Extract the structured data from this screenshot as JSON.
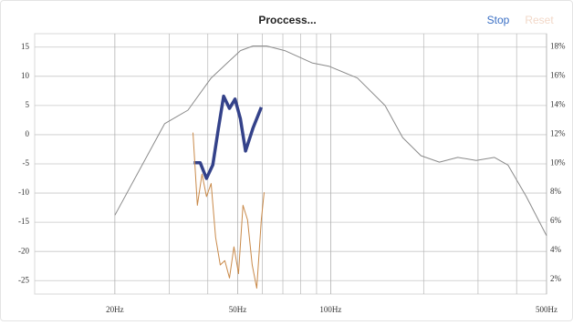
{
  "header": {
    "title": "Proccess...",
    "stop": "Stop",
    "reset": "Reset"
  },
  "chart_data": {
    "type": "line",
    "xscale": "log",
    "grid": true,
    "xlim": [
      11,
      500
    ],
    "xticks": [
      {
        "value": 20,
        "label": "20Hz"
      },
      {
        "value": 50,
        "label": "50Hz"
      },
      {
        "value": 100,
        "label": "100Hz"
      },
      {
        "value": 500,
        "label": "500Hz"
      }
    ],
    "xminor": [
      30,
      40,
      60,
      70,
      80,
      90,
      200,
      300,
      400
    ],
    "ylim": [
      -27.3,
      17.3
    ],
    "yticks": [
      15,
      10,
      5,
      0,
      -5,
      -10,
      -15,
      -20,
      -25
    ],
    "y2lim": [
      1,
      18.9
    ],
    "y2ticks": [
      {
        "value": 18,
        "label": "18%"
      },
      {
        "value": 16,
        "label": "16%"
      },
      {
        "value": 14,
        "label": "14%"
      },
      {
        "value": 12,
        "label": "12%"
      },
      {
        "value": 10,
        "label": "10%"
      },
      {
        "value": 8,
        "label": "8%"
      },
      {
        "value": 6,
        "label": "6%"
      },
      {
        "value": 4,
        "label": "4%"
      },
      {
        "value": 2,
        "label": "2%"
      }
    ],
    "series": [
      {
        "color": "#8a8a8a",
        "width": 1,
        "x": [
          20,
          29,
          34.5,
          41,
          51,
          56,
          62,
          71,
          87,
          99,
          122,
          150,
          171,
          196,
          225,
          258,
          296,
          339,
          375,
          430,
          500
        ],
        "values": [
          -13.8,
          1.9,
          4.2,
          9.7,
          14.4,
          15.2,
          15.2,
          14.4,
          12.3,
          11.7,
          9.7,
          5,
          -0.5,
          -3.6,
          -4.7,
          -3.9,
          -4.4,
          -3.9,
          -5.2,
          -10.6,
          -17.3
        ]
      },
      {
        "color": "#34428a",
        "width": 3.5,
        "x": [
          36,
          37.8,
          39.6,
          41.5,
          43.3,
          45,
          47,
          49,
          51,
          53,
          56,
          59.6
        ],
        "values": [
          -4.8,
          -4.8,
          -7.5,
          -5.2,
          1.1,
          6.6,
          4.5,
          6.1,
          2.7,
          -2.8,
          1.1,
          4.7
        ]
      },
      {
        "color": "#c98a4a",
        "width": 1,
        "axis": "y2",
        "x": [
          35.8,
          37,
          38.3,
          39.6,
          41,
          42.4,
          43.9,
          45.4,
          47,
          48.6,
          50.3,
          52,
          53.8,
          55.7,
          57.6,
          59.6,
          60.9
        ],
        "values": [
          12.1,
          7.1,
          9.25,
          7.7,
          8.6,
          4.9,
          3,
          3.3,
          2.1,
          4.25,
          2.4,
          7.1,
          6.1,
          3,
          1.4,
          6.1,
          8
        ]
      }
    ]
  }
}
